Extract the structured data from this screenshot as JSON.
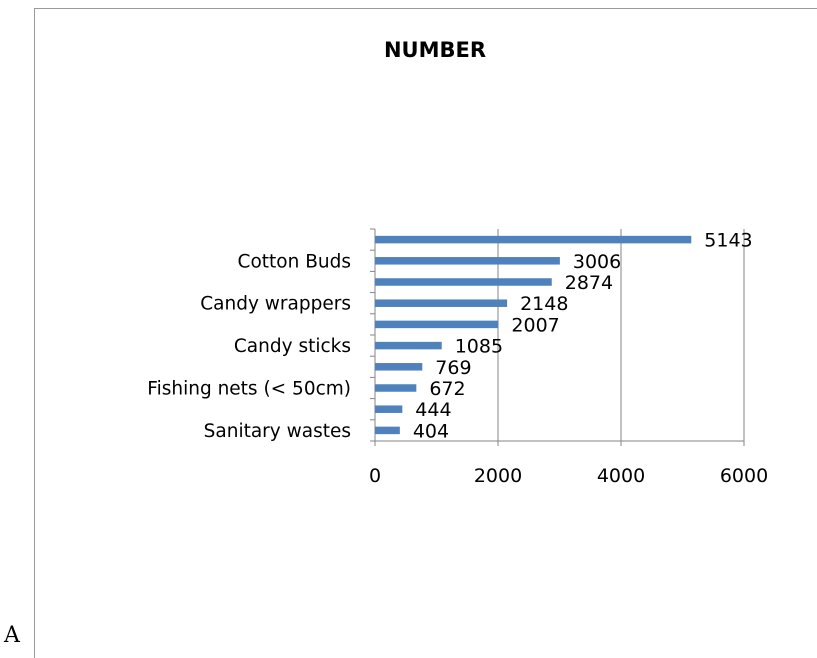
{
  "caption": "A",
  "chart_data": {
    "type": "bar",
    "orientation": "horizontal",
    "title": "NUMBER",
    "categories": [
      "",
      "Cotton Buds",
      "",
      "Candy wrappers",
      "",
      "Candy sticks",
      "",
      "Fishing nets (< 50cm)",
      "",
      "Sanitary wastes"
    ],
    "values": [
      5143,
      3006,
      2874,
      2148,
      2007,
      1085,
      769,
      672,
      444,
      404
    ],
    "xlim": [
      0,
      6000
    ],
    "xticks": [
      "0",
      "2000",
      "4000",
      "6000"
    ],
    "grid": "vertical",
    "bar_color": "#4f81bd"
  }
}
